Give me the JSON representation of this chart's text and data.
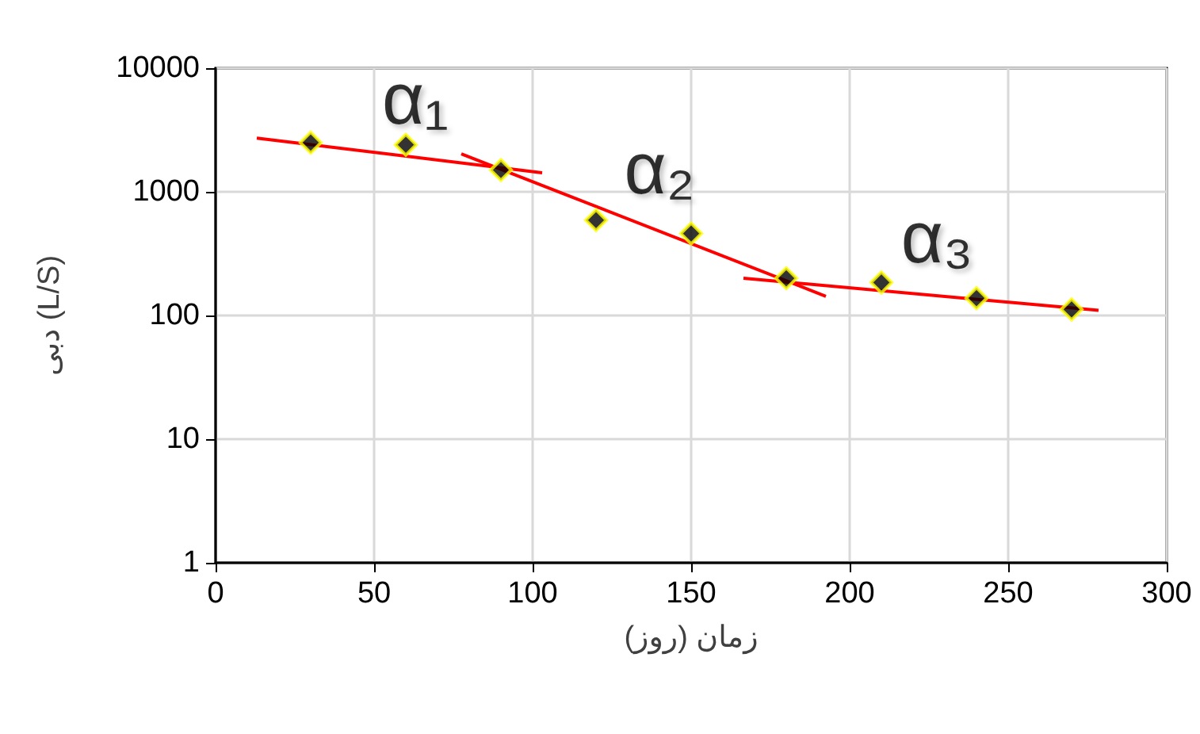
{
  "chart_data": {
    "type": "scatter",
    "xlabel": "زمان (روز)",
    "ylabel": "دبی (L/S)",
    "xlim": [
      0,
      300
    ],
    "xticks": [
      0,
      50,
      100,
      150,
      200,
      250,
      300
    ],
    "ylim": [
      1,
      10000
    ],
    "yticks": [
      1,
      10,
      100,
      1000,
      10000
    ],
    "log": "y",
    "grid": true,
    "marker": "diamond",
    "series": [
      {
        "color": "#000000",
        "x": [
          30,
          60,
          90,
          120,
          150,
          180,
          210,
          240,
          270
        ],
        "values": [
          2500,
          2400,
          1500,
          590,
          460,
          200,
          185,
          138,
          112
        ]
      },
      {
        "type": "line",
        "color": "#ff0000",
        "marker": "none",
        "x": [
          13,
          103
        ],
        "values": [
          2720,
          1425
        ]
      },
      {
        "type": "line",
        "color": "#ff0000",
        "marker": "none",
        "x": [
          77.5,
          192.5
        ],
        "values": [
          2030,
          143
        ]
      },
      {
        "type": "line",
        "color": "#ff0000",
        "marker": "none",
        "x": [
          166.5,
          278.5
        ],
        "values": [
          200,
          110
        ]
      }
    ],
    "annotations": [
      "α₁",
      "α₂",
      "α₃"
    ]
  }
}
